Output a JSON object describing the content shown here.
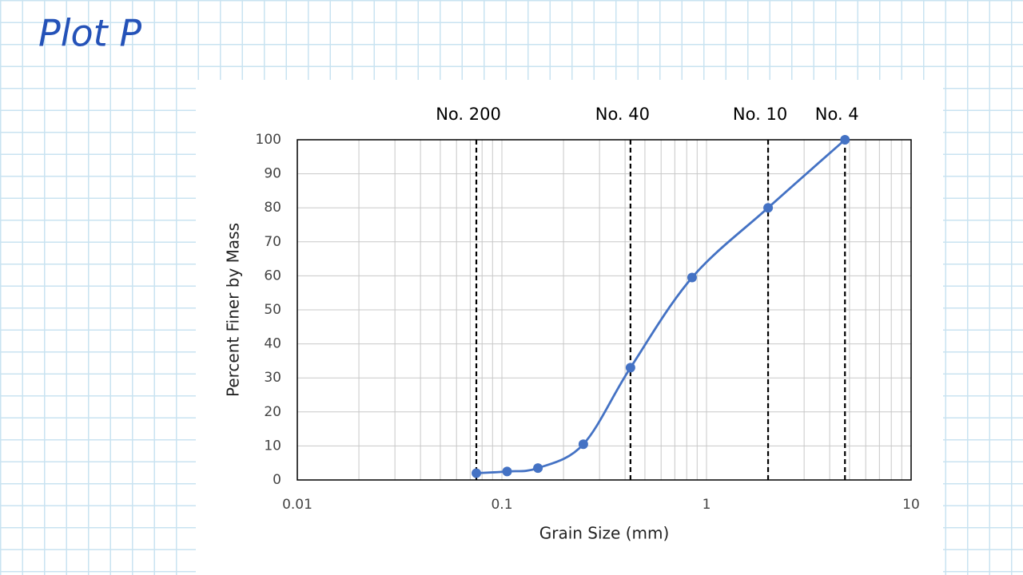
{
  "handwritten_title": "Plot P",
  "chart_data": {
    "type": "line",
    "smooth": true,
    "log_x": true,
    "grid": true,
    "x_label": "Grain Size (mm)",
    "y_label": "Percent Finer by Mass",
    "x": [
      0.075,
      0.106,
      0.15,
      0.25,
      0.425,
      0.85,
      2.0,
      4.75
    ],
    "series": [
      {
        "color": "#4472c4",
        "values": [
          2,
          2.5,
          3.5,
          10.5,
          33,
          59.5,
          80,
          100
        ]
      }
    ],
    "xlim": [
      0.01,
      10
    ],
    "ylim": [
      0,
      100
    ],
    "xticks": [
      0.01,
      0.1,
      1,
      10
    ],
    "x_minor_grid": [
      0.02,
      0.03,
      0.04,
      0.05,
      0.06,
      0.07,
      0.08,
      0.09,
      0.2,
      0.3,
      0.4,
      0.5,
      0.6,
      0.7,
      0.8,
      0.9,
      2,
      3,
      4,
      5,
      6,
      7,
      8,
      9
    ],
    "yticks": [
      0,
      10,
      20,
      30,
      40,
      50,
      60,
      70,
      80,
      90,
      100
    ],
    "reference_lines": [
      {
        "x": 0.075,
        "label": "No. 200"
      },
      {
        "x": 0.425,
        "label": "No. 40"
      },
      {
        "x": 2.0,
        "label": "No. 10"
      },
      {
        "x": 4.75,
        "label": "No. 4"
      }
    ]
  }
}
